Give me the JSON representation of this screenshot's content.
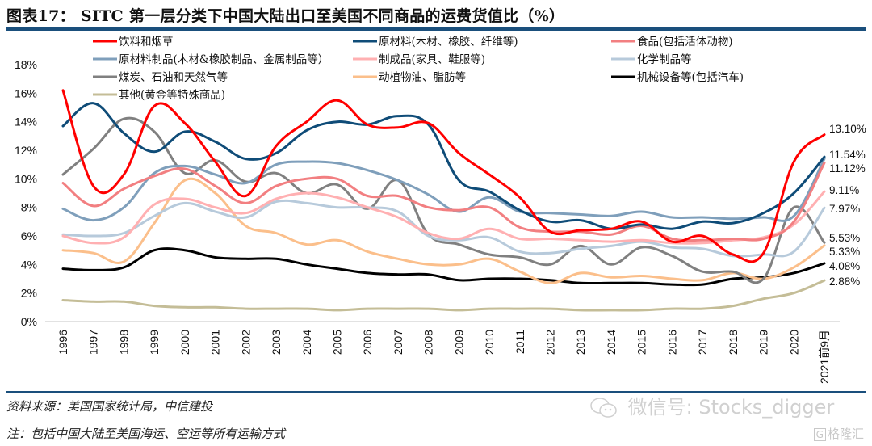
{
  "header": {
    "title": "图表17：  SITC 第一层分类下中国大陆出口至美国不同商品的运费货值比（%）"
  },
  "footer": {
    "source": "资料来源：美国国家统计局，中信建投",
    "note": "注：包括中国大陆至美国海运、空运等所有运输方式",
    "watermark": "微信号: Stocks_digger",
    "badge": "格隆汇"
  },
  "chart_data": {
    "type": "line",
    "title": "SITC 第一层分类下中国大陆出口至美国不同商品的运费货值比（%）",
    "xlabel": "",
    "ylabel": "",
    "ylim": [
      0,
      18
    ],
    "yticks": [
      "0%",
      "2%",
      "4%",
      "6%",
      "8%",
      "10%",
      "12%",
      "14%",
      "16%",
      "18%"
    ],
    "ytick_values": [
      0,
      2,
      4,
      6,
      8,
      10,
      12,
      14,
      16,
      18
    ],
    "grid": false,
    "legend_position": "top",
    "x": [
      "1996",
      "1997",
      "1998",
      "1999",
      "2000",
      "2001",
      "2002",
      "2003",
      "2004",
      "2005",
      "2006",
      "2007",
      "2008",
      "2009",
      "2010",
      "2011",
      "2012",
      "2013",
      "2014",
      "2015",
      "2016",
      "2017",
      "2018",
      "2019",
      "2020",
      "2021前9月"
    ],
    "series": [
      {
        "name": "饮料和烟草",
        "color": "#ff0000",
        "values": [
          16.2,
          9.5,
          10.3,
          15.1,
          13.9,
          11.2,
          8.8,
          12.3,
          14.0,
          15.5,
          13.8,
          13.6,
          13.9,
          11.8,
          10.3,
          8.7,
          6.3,
          6.4,
          6.5,
          7.0,
          5.6,
          6.0,
          4.7,
          4.8,
          11.2,
          13.1
        ],
        "end_label": "13.10%"
      },
      {
        "name": "原材料(木材、橡胶、纤维等)",
        "color": "#0f4c78",
        "values": [
          13.7,
          15.3,
          13.2,
          11.9,
          13.3,
          12.6,
          11.4,
          11.8,
          13.4,
          14.0,
          13.8,
          14.4,
          13.8,
          9.9,
          9.1,
          7.8,
          7.0,
          7.1,
          6.5,
          6.8,
          6.5,
          7.0,
          6.9,
          7.6,
          9.0,
          11.54
        ],
        "end_label": "11.54%"
      },
      {
        "name": "食品(包括活体动物)",
        "color": "#f27f81",
        "values": [
          9.7,
          8.1,
          9.3,
          10.2,
          10.7,
          9.5,
          8.3,
          9.5,
          10.0,
          10.0,
          8.8,
          8.8,
          8.0,
          7.8,
          8.0,
          6.6,
          6.3,
          6.3,
          6.1,
          6.7,
          5.8,
          5.7,
          5.8,
          5.8,
          7.0,
          11.12
        ],
        "end_label": "11.12%"
      },
      {
        "name": "原材料制品(木材&橡胶制品、金属制品等）",
        "color": "#7f9fbb",
        "values": [
          7.9,
          7.1,
          8.0,
          10.4,
          10.9,
          10.3,
          9.7,
          11.0,
          11.2,
          11.1,
          10.6,
          9.9,
          8.9,
          7.7,
          8.7,
          7.7,
          7.6,
          7.5,
          7.4,
          7.7,
          7.3,
          7.3,
          7.2,
          7.3,
          7.4,
          11.4
        ],
        "end_label": ""
      },
      {
        "name": "制成品(家具、鞋服等)",
        "color": "#ffb0b2",
        "values": [
          6.0,
          5.5,
          5.9,
          8.2,
          8.6,
          8.0,
          7.6,
          8.6,
          9.0,
          8.7,
          8.0,
          7.3,
          6.2,
          5.8,
          6.5,
          5.8,
          5.8,
          5.7,
          5.6,
          5.7,
          5.5,
          5.5,
          5.7,
          5.9,
          6.8,
          9.11
        ],
        "end_label": "9.11%"
      },
      {
        "name": "化学制品等",
        "color": "#b7cadb",
        "values": [
          6.1,
          6.0,
          6.2,
          7.4,
          8.3,
          7.7,
          7.3,
          8.4,
          8.3,
          8.0,
          8.0,
          7.7,
          6.0,
          5.7,
          5.9,
          4.9,
          4.8,
          5.1,
          5.3,
          5.6,
          5.2,
          5.1,
          4.6,
          4.7,
          4.9,
          7.97
        ],
        "end_label": "7.97%"
      },
      {
        "name": "煤炭、石油和天然气等",
        "color": "#808080",
        "values": [
          10.3,
          12.1,
          14.2,
          13.3,
          10.4,
          11.3,
          9.8,
          10.4,
          9.0,
          9.6,
          7.9,
          9.9,
          6.1,
          5.4,
          4.7,
          4.5,
          4.0,
          5.3,
          4.0,
          5.2,
          4.6,
          3.5,
          3.5,
          3.0,
          8.0,
          5.53
        ],
        "end_label": "5.53%"
      },
      {
        "name": "动植物油、脂肪等",
        "color": "#fbbf8b",
        "values": [
          5.0,
          4.8,
          4.2,
          6.9,
          9.9,
          9.0,
          6.7,
          6.2,
          5.4,
          5.7,
          4.9,
          4.4,
          4.0,
          4.0,
          4.4,
          3.5,
          2.7,
          3.4,
          3.1,
          3.2,
          3.0,
          2.9,
          3.4,
          3.0,
          3.8,
          5.33
        ],
        "end_label": "5.33%"
      },
      {
        "name": "机械设备等(包括汽车)",
        "color": "#000000",
        "values": [
          3.7,
          3.6,
          3.8,
          5.0,
          5.0,
          4.5,
          4.4,
          4.4,
          4.0,
          3.7,
          3.4,
          3.3,
          3.3,
          2.9,
          3.0,
          3.0,
          2.9,
          2.7,
          2.7,
          2.7,
          2.6,
          2.6,
          3.0,
          3.1,
          3.4,
          4.08
        ],
        "end_label": "4.08%"
      },
      {
        "name": "其他(黄金等特殊商品)",
        "color": "#c4bd97",
        "values": [
          1.5,
          1.4,
          1.4,
          1.1,
          1.0,
          1.0,
          0.9,
          0.9,
          0.9,
          0.8,
          0.9,
          0.9,
          0.9,
          0.8,
          0.9,
          0.9,
          0.9,
          0.8,
          0.8,
          0.8,
          0.9,
          0.9,
          1.1,
          1.6,
          2.0,
          2.88
        ],
        "end_label": "2.88%"
      }
    ]
  }
}
